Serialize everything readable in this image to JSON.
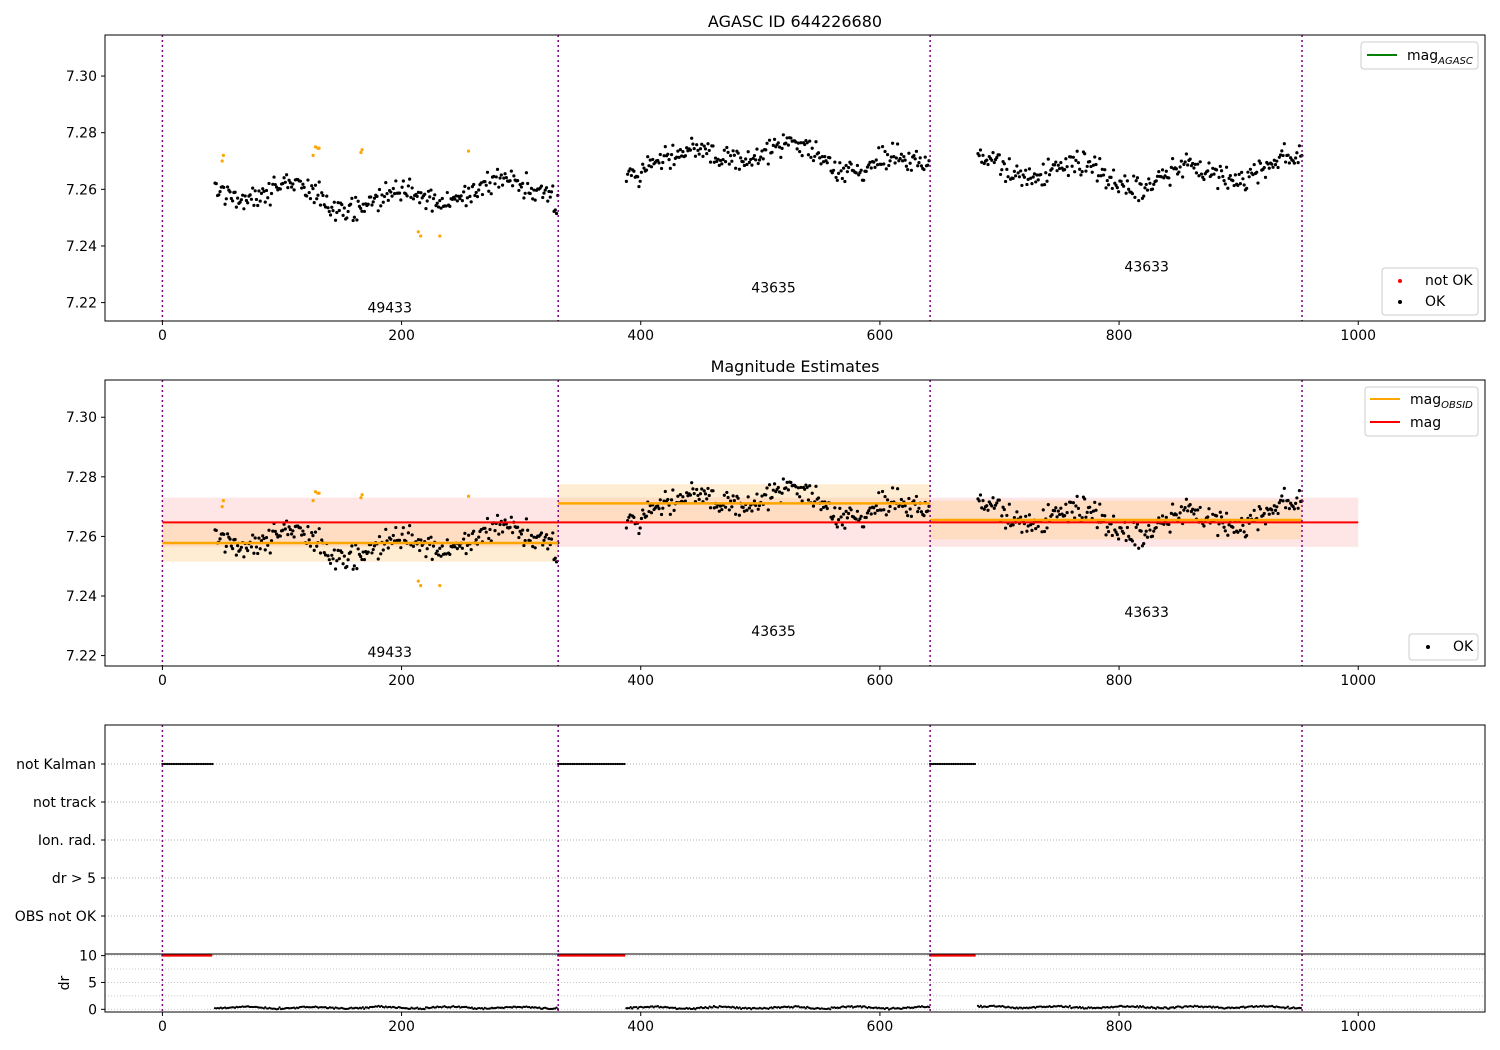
{
  "chart_data": [
    {
      "type": "scatter",
      "title": "AGASC ID 644226680",
      "xlim": [
        -48,
        1106
      ],
      "ylim": [
        7.2135,
        7.3145
      ],
      "xticks": [
        0,
        200,
        400,
        600,
        800,
        1000
      ],
      "yticks": [
        7.22,
        7.24,
        7.26,
        7.28,
        7.3
      ],
      "obsid_boundaries": [
        0,
        331,
        642,
        953
      ],
      "obsid_labels": [
        {
          "text": "49433",
          "x": 165,
          "y": 7.2165
        },
        {
          "text": "43635",
          "x": 486,
          "y": 7.2235
        },
        {
          "text": "43633",
          "x": 798,
          "y": 7.231
        }
      ],
      "legends": [
        {
          "location": "upper right",
          "entries": [
            {
              "label": "mag",
              "sub": "AGASC",
              "color": "#008000",
              "kind": "line"
            }
          ]
        },
        {
          "location": "lower right",
          "entries": [
            {
              "label": "not OK",
              "color": "#ff0000",
              "kind": "dot"
            },
            {
              "label": "OK",
              "color": "#000000",
              "kind": "dot"
            }
          ]
        }
      ],
      "series": [
        {
          "name": "OK",
          "color": "#000000",
          "segments": [
            {
              "x_start": 44,
              "x_end": 331,
              "baseline": 7.258,
              "amplitude": 0.005,
              "noise": 0.003
            },
            {
              "x_start": 388,
              "x_end": 642,
              "baseline": 7.271,
              "amplitude": 0.005,
              "noise": 0.003
            },
            {
              "x_start": 682,
              "x_end": 953,
              "baseline": 7.266,
              "amplitude": 0.005,
              "noise": 0.003
            }
          ]
        },
        {
          "name": "not OK (orange)",
          "color": "#ffa500",
          "points": [
            [
              50,
              7.27
            ],
            [
              51,
              7.272
            ],
            [
              126,
              7.272
            ],
            [
              128,
              7.275
            ],
            [
              130,
              7.2745
            ],
            [
              131,
              7.2745
            ],
            [
              166,
              7.273
            ],
            [
              167,
              7.274
            ],
            [
              214,
              7.245
            ],
            [
              216,
              7.2435
            ],
            [
              232,
              7.2435
            ],
            [
              256,
              7.2735
            ]
          ]
        }
      ]
    },
    {
      "type": "scatter",
      "title": "Magnitude Estimates",
      "xlim": [
        -48,
        1106
      ],
      "ylim": [
        7.2165,
        7.3125
      ],
      "xticks": [
        0,
        200,
        400,
        600,
        800,
        1000
      ],
      "yticks": [
        7.22,
        7.24,
        7.26,
        7.28,
        7.3
      ],
      "obsid_boundaries": [
        0,
        331,
        642,
        953
      ],
      "obsid_labels": [
        {
          "text": "49433",
          "x": 165,
          "y": 7.2195
        },
        {
          "text": "43635",
          "x": 486,
          "y": 7.2265
        },
        {
          "text": "43633",
          "x": 798,
          "y": 7.233
        }
      ],
      "legends": [
        {
          "location": "upper right",
          "entries": [
            {
              "label": "mag",
              "sub": "OBSID",
              "color": "#ffa500",
              "kind": "line"
            },
            {
              "label": "mag",
              "color": "#ff0000",
              "kind": "line"
            }
          ]
        },
        {
          "location": "lower right",
          "entries": [
            {
              "label": "OK",
              "color": "#000000",
              "kind": "dot"
            }
          ]
        }
      ],
      "mag": {
        "value": 7.2647,
        "lower": 7.2565,
        "upper": 7.273,
        "x_range": [
          0,
          1000
        ],
        "color": "#ff0000"
      },
      "mag_obsid": [
        {
          "x_range": [
            0,
            331
          ],
          "value": 7.2578,
          "lower": 7.2515,
          "upper": 7.2645
        },
        {
          "x_range": [
            331,
            642
          ],
          "value": 7.2711,
          "lower": 7.265,
          "upper": 7.2775
        },
        {
          "x_range": [
            642,
            953
          ],
          "value": 7.2655,
          "lower": 7.259,
          "upper": 7.272
        }
      ]
    },
    {
      "type": "scatter",
      "title": "",
      "xlim": [
        -48,
        1106
      ],
      "category_labels": [
        "not Kalman",
        "not track",
        "Ion. rad.",
        "dr > 5",
        "OBS not OK"
      ],
      "flag_runs": [
        {
          "category": "not Kalman",
          "x_start": 0,
          "x_end": 42
        },
        {
          "category": "not Kalman",
          "x_start": 331,
          "x_end": 387
        },
        {
          "category": "not Kalman",
          "x_start": 642,
          "x_end": 680
        }
      ],
      "obsid_boundaries": [
        0,
        331,
        642,
        953
      ]
    },
    {
      "type": "scatter",
      "title": "",
      "xlim": [
        -48,
        1106
      ],
      "ylim": [
        -0.5,
        10.3
      ],
      "ylabel": "dr",
      "xticks": [
        0,
        200,
        400,
        600,
        800,
        1000
      ],
      "yticks": [
        0,
        5,
        10
      ],
      "obsid_boundaries": [
        0,
        331,
        642,
        953
      ],
      "series": [
        {
          "name": "dr capped",
          "color": "#ff0000",
          "runs": [
            [
              0,
              42,
              10
            ],
            [
              331,
              387,
              10
            ],
            [
              642,
              680,
              10
            ]
          ]
        },
        {
          "name": "dr",
          "color": "#000000",
          "runs": [
            [
              44,
              331,
              0.3
            ],
            [
              388,
              642,
              0.3
            ],
            [
              682,
              953,
              0.4
            ]
          ]
        }
      ]
    }
  ]
}
